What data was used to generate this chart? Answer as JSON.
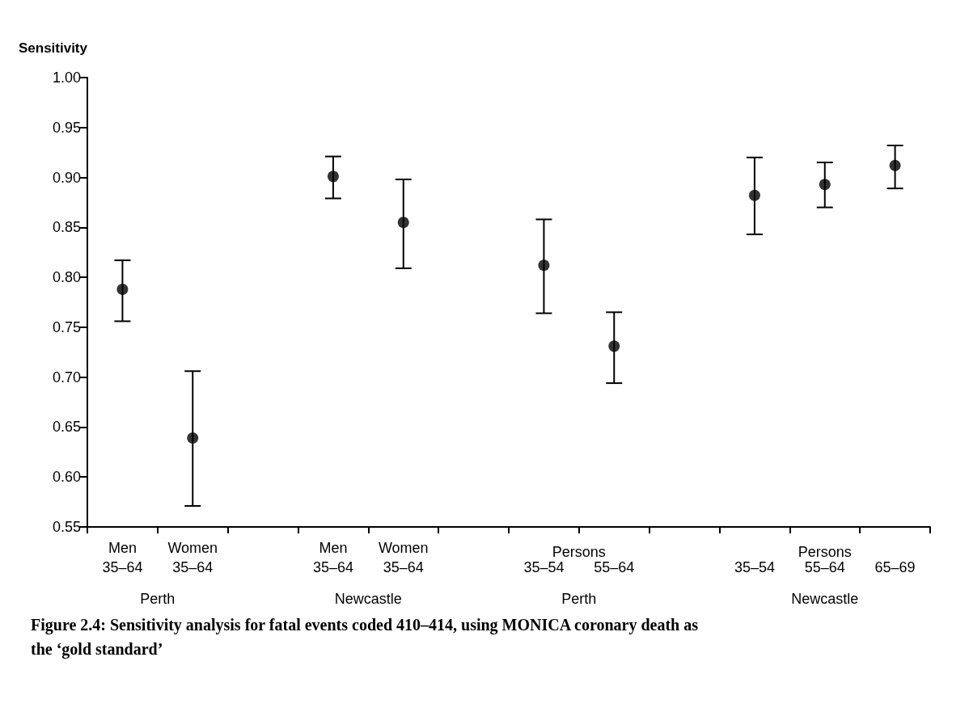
{
  "chart_data": {
    "type": "scatter",
    "ylabel": "Sensitivity",
    "title": "Figure 2.4: Sensitivity analysis for fatal events coded 410–414, using MONICA coronary death as the ‘gold standard’",
    "categories": [
      "Men\n35–64",
      "Women\n35–64",
      null,
      "Men\n35–64",
      "Women\n35–64",
      null,
      "35–54",
      "55–64",
      null,
      "35–54",
      "55–64",
      "65–69"
    ],
    "values": [
      0.788,
      0.639,
      null,
      0.901,
      0.855,
      null,
      0.812,
      0.731,
      null,
      0.882,
      0.893,
      0.912
    ],
    "errors": [
      [
        0.756,
        0.817
      ],
      [
        0.571,
        0.706
      ],
      null,
      [
        0.879,
        0.921
      ],
      [
        0.809,
        0.898
      ],
      null,
      [
        0.764,
        0.858
      ],
      [
        0.694,
        0.765
      ],
      null,
      [
        0.843,
        0.92
      ],
      [
        0.87,
        0.915
      ],
      [
        0.889,
        0.932
      ]
    ],
    "color": "#000000",
    "marker": "circle",
    "grid": false,
    "ylim": [
      0.55,
      1.0
    ],
    "yticks": [
      {
        "value": 0.55,
        "label": "0.55"
      },
      {
        "value": 0.6,
        "label": "0.60"
      },
      {
        "value": 0.65,
        "label": "0.65"
      },
      {
        "value": 0.7,
        "label": "0.70"
      },
      {
        "value": 0.75,
        "label": "0.75"
      },
      {
        "value": 0.8,
        "label": "0.80"
      },
      {
        "value": 0.85,
        "label": "0.85"
      },
      {
        "value": 0.9,
        "label": "0.90"
      },
      {
        "value": 0.95,
        "label": "0.95"
      },
      {
        "value": 1.0,
        "label": "1.00"
      }
    ],
    "annotations": [
      "Persons",
      "Persons",
      "Perth",
      "Newcastle",
      "Perth",
      "Newcastle"
    ]
  }
}
